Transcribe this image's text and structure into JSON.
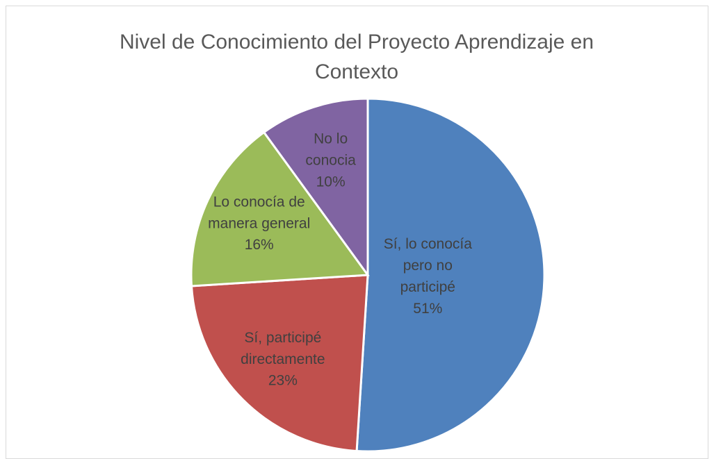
{
  "chart_data": {
    "type": "pie",
    "title": "Nivel de Conocimiento del Proyecto Aprendizaje en Contexto",
    "categories": [
      "Sí, lo conocía pero no participé",
      "Sí, participé directamente",
      "Lo conocía de manera general",
      "No lo conocia"
    ],
    "values": [
      51,
      23,
      16,
      10
    ],
    "value_labels": [
      "51%",
      "23%",
      "16%",
      "10%"
    ],
    "colors": [
      "#4f81bd",
      "#c0504d",
      "#9bbb59",
      "#8064a2"
    ]
  }
}
